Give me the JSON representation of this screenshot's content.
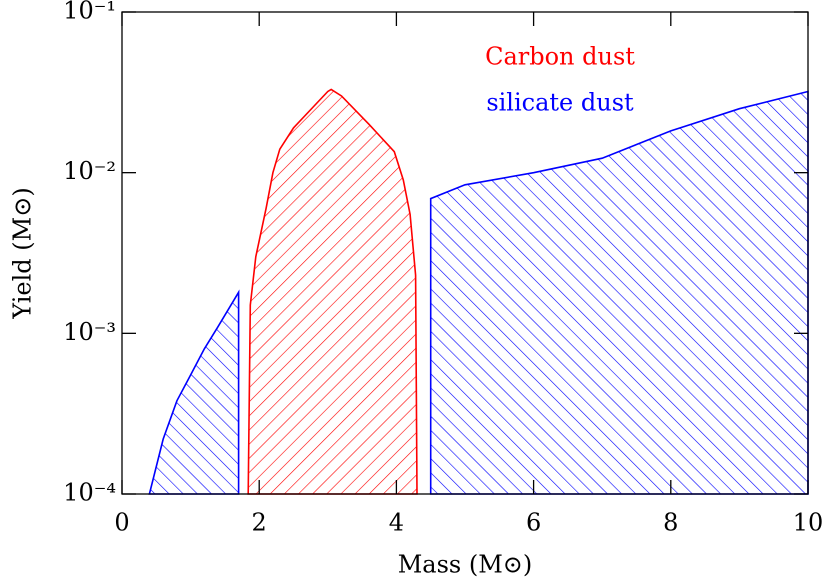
{
  "chart_data": {
    "type": "area",
    "x_label": "Mass (M⊙)",
    "y_label": "Yield (M⊙)",
    "log_y": true,
    "xlim": [
      0,
      10
    ],
    "xticks": [
      0,
      2,
      4,
      6,
      8,
      10
    ],
    "ylim": [
      0.0001,
      0.1
    ],
    "yticks": [
      {
        "value": 0.0001,
        "label": "10⁻⁴"
      },
      {
        "value": 0.001,
        "label": "10⁻³"
      },
      {
        "value": 0.01,
        "label": "10⁻²"
      },
      {
        "value": 0.1,
        "label": "10⁻¹"
      }
    ],
    "legend": "upper right",
    "hatch": true,
    "series": [
      {
        "name": "Carbon dust",
        "color": "#ff0000",
        "hatch_angle": 45,
        "x": [
          1.84,
          1.87,
          1.95,
          2.1,
          2.2,
          2.3,
          2.5,
          2.8,
          3.0,
          3.05,
          3.2,
          3.6,
          3.97,
          4.1,
          4.2,
          4.28,
          4.3
        ],
        "values": [
          0.0001,
          0.0015,
          0.003,
          0.006,
          0.01,
          0.014,
          0.019,
          0.026,
          0.032,
          0.033,
          0.03,
          0.02,
          0.0135,
          0.009,
          0.0055,
          0.0023,
          0.0001
        ]
      },
      {
        "name": "silicate dust",
        "color": "#0000ff",
        "hatch_angle": -45,
        "x": [
          0.4,
          0.6,
          0.8,
          1.0,
          1.2,
          1.4,
          1.7,
          1.7,
          null,
          4.5,
          4.5,
          5.0,
          6.0,
          7.0,
          8.0,
          9.0,
          10.0,
          10.0
        ],
        "values": [
          0.0001,
          0.00022,
          0.00038,
          0.00055,
          0.0008,
          0.0011,
          0.0018,
          0.0001,
          null,
          0.0001,
          0.0069,
          0.0084,
          0.01,
          0.0123,
          0.0182,
          0.025,
          0.032,
          0.0001
        ]
      }
    ]
  }
}
